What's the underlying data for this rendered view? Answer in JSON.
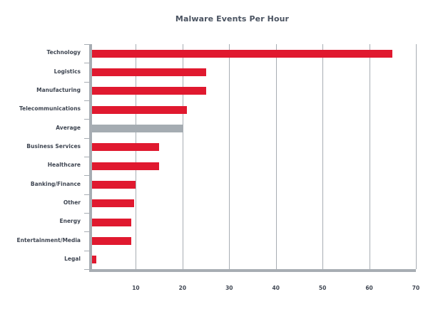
{
  "chart_data": {
    "type": "bar",
    "orientation": "horizontal",
    "title": "Malware Events Per Hour",
    "xlabel": "",
    "ylabel": "",
    "xlim": [
      0,
      70
    ],
    "xticks": [
      10,
      20,
      30,
      40,
      50,
      60,
      70
    ],
    "grid": true,
    "legend": null,
    "categories": [
      "Technology",
      "Logistics",
      "Manufacturing",
      "Telecommunications",
      "Average",
      "Business Services",
      "Healthcare",
      "Banking/Finance",
      "Other",
      "Energy",
      "Entertainment/Media",
      "Legal"
    ],
    "values": [
      65,
      25,
      25,
      21,
      20,
      15,
      15,
      10,
      9.7,
      9,
      9,
      1.5
    ],
    "colors": {
      "bar": "#e0192f",
      "average": "#a5acb2",
      "axis": "#a7adb3",
      "text": "#3f4652"
    }
  },
  "labels": {
    "title": "Malware Events Per Hour",
    "xticks": [
      "10",
      "20",
      "30",
      "40",
      "50",
      "60",
      "70"
    ],
    "categories": [
      "Technology",
      "Logistics",
      "Manufacturing",
      "Telecommunications",
      "Average",
      "Business Services",
      "Healthcare",
      "Banking/Finance",
      "Other",
      "Energy",
      "Entertainment/Media",
      "Legal"
    ]
  }
}
